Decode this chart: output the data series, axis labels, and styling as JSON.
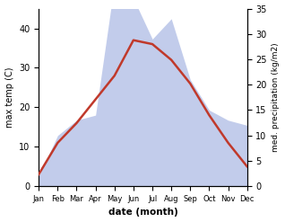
{
  "months": [
    "Jan",
    "Feb",
    "Mar",
    "Apr",
    "May",
    "Jun",
    "Jul",
    "Aug",
    "Sep",
    "Oct",
    "Nov",
    "Dec"
  ],
  "max_temp": [
    3,
    11,
    16,
    22,
    28,
    37,
    36,
    32,
    26,
    18,
    11,
    5
  ],
  "precipitation": [
    2,
    10,
    13,
    14,
    40,
    37,
    29,
    33,
    21,
    15,
    13,
    12
  ],
  "temp_color": "#c0392b",
  "precip_fill_color": "#b8c4e8",
  "temp_ylim": [
    0,
    45
  ],
  "precip_ylim": [
    0,
    35
  ],
  "temp_yticks": [
    0,
    10,
    20,
    30,
    40
  ],
  "precip_yticks": [
    0,
    5,
    10,
    15,
    20,
    25,
    30,
    35
  ],
  "xlabel": "date (month)",
  "ylabel_left": "max temp (C)",
  "ylabel_right": "med. precipitation (kg/m2)",
  "bg_color": "#ffffff"
}
